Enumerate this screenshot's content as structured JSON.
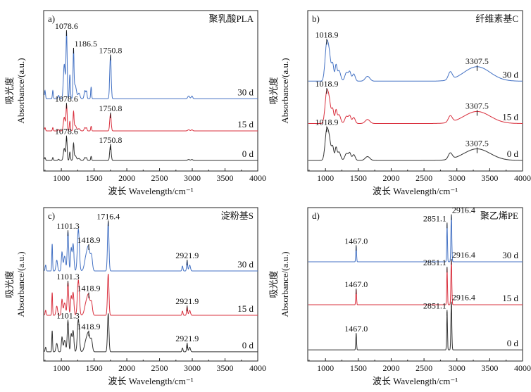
{
  "colors": {
    "0 d": "#333333",
    "15 d": "#d9303e",
    "30 d": "#4472c4"
  },
  "chart_data": [
    {
      "type": "line",
      "panel": "a)",
      "title": "聚乳酸PLA",
      "xlabel": "波长 Wavelength/cm⁻¹",
      "ylabel_cn": "吸光度",
      "ylabel": "Absorbance/(a.u.)",
      "xlim": [
        730,
        4000
      ],
      "ylim": [
        0,
        10
      ],
      "xticks": [
        1000,
        1500,
        2000,
        2500,
        3000,
        3500,
        4000
      ],
      "peaks_shape": [
        [
          750,
          0.12,
          8
        ],
        [
          870,
          0.12,
          7
        ],
        [
          958,
          0.05,
          10
        ],
        [
          1045,
          0.5,
          14
        ],
        [
          1080,
          0.95,
          9
        ],
        [
          1130,
          0.35,
          8
        ],
        [
          1186,
          0.62,
          7
        ],
        [
          1210,
          0.2,
          20
        ],
        [
          1270,
          0.08,
          15
        ],
        [
          1360,
          0.12,
          12
        ],
        [
          1385,
          0.1,
          8
        ],
        [
          1455,
          0.17,
          7
        ],
        [
          1750,
          0.62,
          11
        ],
        [
          2945,
          0.04,
          15
        ],
        [
          2995,
          0.04,
          12
        ]
      ],
      "series": [
        {
          "name": "30 d",
          "offset": 4.5,
          "scale": 4.3,
          "annotations": [
            {
              "x": 1078.6,
              "label": "1078.6",
              "anchor": "middle"
            },
            {
              "x": 1186.5,
              "label": "1186.5",
              "anchor": "start"
            },
            {
              "x": 1750.8,
              "label": "1750.8",
              "anchor": "middle"
            }
          ]
        },
        {
          "name": "15 d",
          "offset": 2.5,
          "scale": 1.7,
          "annotations": [
            {
              "x": 1078.6,
              "label": "1078.6",
              "anchor": "middle"
            },
            {
              "x": 1750.8,
              "label": "1750.8",
              "anchor": "middle"
            }
          ]
        },
        {
          "name": "0 d",
          "offset": 0.66,
          "scale": 1.5,
          "annotations": [
            {
              "x": 1078.6,
              "label": "1078.6",
              "anchor": "middle"
            },
            {
              "x": 1750.8,
              "label": "1750.8",
              "anchor": "middle"
            }
          ]
        }
      ]
    },
    {
      "type": "line",
      "panel": "b)",
      "title": "纤维素基C",
      "xlabel": "波长 Wavelength/cm⁻¹",
      "ylabel_cn": "吸光度",
      "ylabel": "Absorbance/(a.u.)",
      "xlim": [
        730,
        4000
      ],
      "ylim": [
        0,
        10
      ],
      "xticks": [
        1000,
        1500,
        2000,
        2500,
        3000,
        3500,
        4000
      ],
      "peaks_shape": [
        [
          1018,
          0.75,
          25
        ],
        [
          1060,
          0.45,
          22
        ],
        [
          1110,
          0.35,
          18
        ],
        [
          1160,
          0.3,
          14
        ],
        [
          1205,
          0.22,
          25
        ],
        [
          1320,
          0.18,
          25
        ],
        [
          1370,
          0.18,
          18
        ],
        [
          1430,
          0.15,
          22
        ],
        [
          1640,
          0.1,
          35
        ],
        [
          2900,
          0.16,
          30
        ],
        [
          3307,
          0.3,
          200
        ]
      ],
      "series": [
        {
          "name": "30 d",
          "offset": 5.6,
          "scale": 3.0,
          "annotations": [
            {
              "x": 1018.9,
              "label": "1018.9",
              "anchor": "middle"
            },
            {
              "x": 3307.5,
              "label": "3307.5",
              "anchor": "middle"
            }
          ]
        },
        {
          "name": "15 d",
          "offset": 2.96,
          "scale": 2.5,
          "annotations": [
            {
              "x": 1018.9,
              "label": "1018.9",
              "anchor": "middle"
            },
            {
              "x": 3307.5,
              "label": "3307.5",
              "anchor": "middle"
            }
          ]
        },
        {
          "name": "0 d",
          "offset": 0.66,
          "scale": 2.4,
          "annotations": [
            {
              "x": 1018.9,
              "label": "1018.9",
              "anchor": "middle"
            },
            {
              "x": 3307.5,
              "label": "3307.5",
              "anchor": "middle"
            }
          ]
        }
      ]
    },
    {
      "type": "line",
      "panel": "c)",
      "title": "淀粉基S",
      "xlabel": "波长 Wavelength/cm⁻¹",
      "ylabel_cn": "吸光度",
      "ylabel": "Absorbance/(a.u.)",
      "xlim": [
        730,
        4000
      ],
      "ylim": [
        0,
        10
      ],
      "xticks": [
        1000,
        1500,
        2000,
        2500,
        3000,
        3500,
        4000
      ],
      "peaks_shape": [
        [
          760,
          0.12,
          8
        ],
        [
          860,
          0.55,
          6
        ],
        [
          930,
          0.22,
          12
        ],
        [
          1010,
          0.38,
          10
        ],
        [
          1050,
          0.3,
          15
        ],
        [
          1101,
          0.8,
          11
        ],
        [
          1150,
          0.45,
          10
        ],
        [
          1180,
          0.55,
          12
        ],
        [
          1260,
          0.85,
          15
        ],
        [
          1380,
          0.3,
          25
        ],
        [
          1418,
          0.4,
          20
        ],
        [
          1460,
          0.3,
          15
        ],
        [
          1716,
          1.0,
          11
        ],
        [
          2850,
          0.1,
          8
        ],
        [
          2921,
          0.2,
          8
        ],
        [
          2960,
          0.12,
          12
        ]
      ],
      "series": [
        {
          "name": "30 d",
          "offset": 5.87,
          "scale": 3.2,
          "annotations": [
            {
              "x": 1101.3,
              "label": "1101.3",
              "anchor": "middle"
            },
            {
              "x": 1418.9,
              "label": "1418.9",
              "anchor": "middle"
            },
            {
              "x": 1716.4,
              "label": "1716.4",
              "anchor": "middle"
            },
            {
              "x": 2921.9,
              "label": "2921.9",
              "anchor": "middle"
            }
          ]
        },
        {
          "name": "15 d",
          "offset": 2.98,
          "scale": 2.7,
          "annotations": [
            {
              "x": 1101.3,
              "label": "1101.3",
              "anchor": "middle"
            },
            {
              "x": 1418.9,
              "label": "1418.9",
              "anchor": "middle"
            },
            {
              "x": 2921.9,
              "label": "2921.9",
              "anchor": "middle"
            }
          ]
        },
        {
          "name": "0 d",
          "offset": 0.6,
          "scale": 2.5,
          "annotations": [
            {
              "x": 1101.3,
              "label": "1101.3",
              "anchor": "middle"
            },
            {
              "x": 1418.9,
              "label": "1418.9",
              "anchor": "middle"
            },
            {
              "x": 2921.9,
              "label": "2921.9",
              "anchor": "middle"
            }
          ]
        }
      ]
    },
    {
      "type": "line",
      "panel": "d)",
      "title": "聚乙烯PE",
      "xlabel": "波长 Wavelength/cm⁻¹",
      "ylabel_cn": "吸光度",
      "ylabel": "Absorbance/(a.u.)",
      "xlim": [
        730,
        4000
      ],
      "ylim": [
        0,
        10
      ],
      "xticks": [
        1000,
        1500,
        2000,
        2500,
        3000,
        3500,
        4000
      ],
      "peaks_shape": [
        [
          720,
          0.05,
          5
        ],
        [
          1467,
          0.33,
          6
        ],
        [
          2851,
          0.82,
          6
        ],
        [
          2916,
          1.0,
          7
        ]
      ],
      "series": [
        {
          "name": "30 d",
          "offset": 6.47,
          "scale": 3.0,
          "annotations": [
            {
              "x": 1467.0,
              "label": "1467.0",
              "anchor": "middle"
            },
            {
              "x": 2851.1,
              "label": "2851.1",
              "anchor": "end"
            },
            {
              "x": 2916.4,
              "label": "2916.4",
              "anchor": "start"
            }
          ]
        },
        {
          "name": "15 d",
          "offset": 3.67,
          "scale": 2.9,
          "annotations": [
            {
              "x": 1467.0,
              "label": "1467.0",
              "anchor": "middle"
            },
            {
              "x": 2851.1,
              "label": "2851.1",
              "anchor": "end"
            },
            {
              "x": 2916.4,
              "label": "2916.4",
              "anchor": "start"
            }
          ]
        },
        {
          "name": "0 d",
          "offset": 0.73,
          "scale": 3.05,
          "annotations": [
            {
              "x": 1467.0,
              "label": "1467.0",
              "anchor": "middle"
            },
            {
              "x": 2851.1,
              "label": "2851.1",
              "anchor": "end"
            },
            {
              "x": 2916.4,
              "label": "2916.4",
              "anchor": "start"
            }
          ]
        }
      ]
    }
  ]
}
